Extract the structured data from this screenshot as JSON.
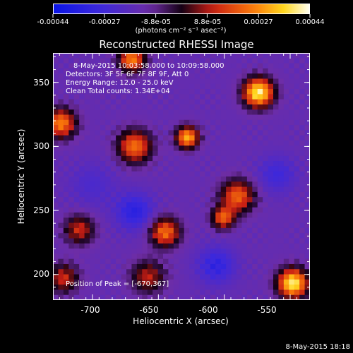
{
  "colorbar": {
    "tick_labels": [
      "-0.00044",
      "-0.00027",
      "-8.8e-05",
      "8.8e-05",
      "0.00027",
      "0.00044"
    ],
    "units": "(photons cm⁻² s⁻¹ asec⁻²)"
  },
  "plot": {
    "title": "Reconstructed RHESSI Image",
    "annotations": {
      "time_range": "8-May-2015 10:03:58.000 to 10:09:58.000",
      "detectors": "Detectors: 3F 5F 6F 7F 8F 9F, Att 0",
      "energy_range": "Energy Range: 12.0 - 25.0 keV",
      "clean": "Clean     Total counts: 1.34E+04",
      "peak": "Position of Peak = [-670,367]"
    },
    "xlabel": "Heliocentric X (arcsec)",
    "ylabel": "Heliocentric Y (arcsec)",
    "x_ticks": [
      "-700",
      "-650",
      "-600",
      "-550"
    ],
    "y_ticks": [
      "350",
      "300",
      "250",
      "200"
    ]
  },
  "footer": {
    "timestamp": "8-May-2015 18:18"
  },
  "colors": {
    "frame": "#ffffff",
    "background": "#000000"
  }
}
